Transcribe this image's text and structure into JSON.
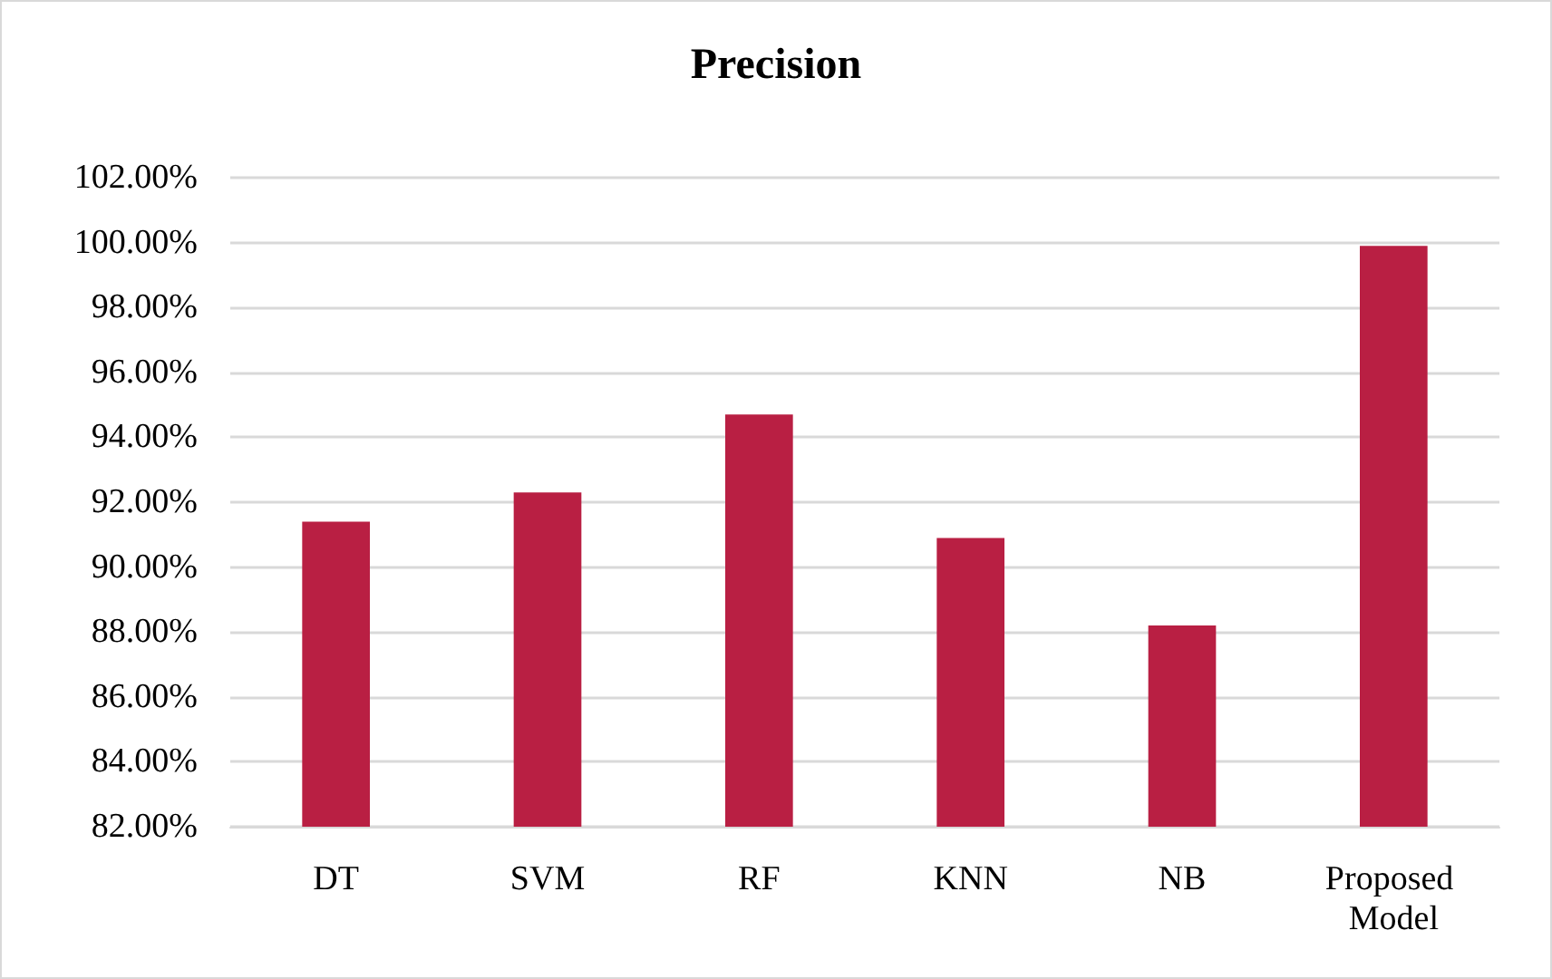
{
  "chart_data": {
    "type": "bar",
    "title": "Precision",
    "categories": [
      "DT",
      "SVM",
      "RF",
      "KNN",
      "NB",
      "Proposed Model"
    ],
    "values": [
      91.4,
      92.3,
      94.7,
      90.9,
      88.2,
      99.9
    ],
    "color": "#b91f43",
    "ylim": [
      82,
      102
    ],
    "yticks": [
      {
        "value": 82,
        "label": "82.00%"
      },
      {
        "value": 84,
        "label": "84.00%"
      },
      {
        "value": 86,
        "label": "86.00%"
      },
      {
        "value": 88,
        "label": "88.00%"
      },
      {
        "value": 90,
        "label": "90.00%"
      },
      {
        "value": 92,
        "label": "92.00%"
      },
      {
        "value": 94,
        "label": "94.00%"
      },
      {
        "value": 96,
        "label": "96.00%"
      },
      {
        "value": 98,
        "label": "98.00%"
      },
      {
        "value": 100,
        "label": "100.00%"
      },
      {
        "value": 102,
        "label": "102.00%"
      }
    ],
    "grid": "y"
  }
}
